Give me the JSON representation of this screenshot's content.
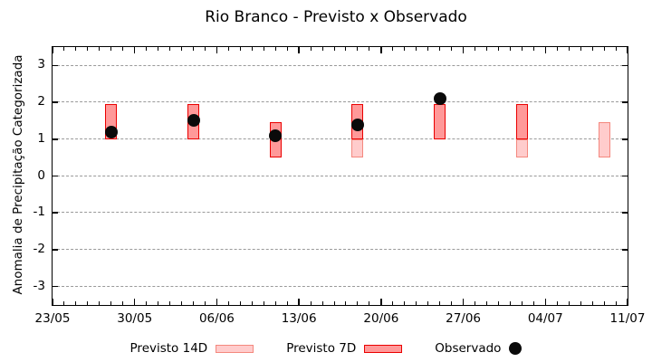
{
  "title": "Rio Branco - Previsto x Observado",
  "y_axis_label": "Anomalia de Precipitação Categorizada",
  "legend": {
    "previsto_14d_label": "Previsto 14D",
    "previsto_7d_label": "Previsto 7D",
    "observado_label": "Observado"
  },
  "chart_data": {
    "type": "bar",
    "title": "Rio Branco - Previsto x Observado",
    "xlabel": "",
    "ylabel": "Anomalia de Precipitação Categorizada",
    "ylim": [
      -3.5,
      3.5
    ],
    "y_ticks": [
      3,
      2,
      1,
      0,
      -1,
      -2,
      -3
    ],
    "grid": true,
    "legend_position": "bottom",
    "x_total_days": 49,
    "x_ticks": [
      {
        "label": "23/05",
        "day": 0
      },
      {
        "label": "30/05",
        "day": 7
      },
      {
        "label": "06/06",
        "day": 14
      },
      {
        "label": "13/06",
        "day": 21
      },
      {
        "label": "20/06",
        "day": 28
      },
      {
        "label": "27/06",
        "day": 35
      },
      {
        "label": "04/07",
        "day": 42
      },
      {
        "label": "11/07",
        "day": 49
      }
    ],
    "series_names": [
      "Previsto 14D",
      "Previsto 7D",
      "Observado"
    ],
    "bars": [
      {
        "date": "28/05",
        "day": 5,
        "previsto_14d": null,
        "previsto_7d": [
          1.0,
          1.95
        ],
        "observado": 1.2
      },
      {
        "date": "04/06",
        "day": 12,
        "previsto_14d": null,
        "previsto_7d": [
          1.0,
          1.95
        ],
        "observado": 1.5
      },
      {
        "date": "11/06",
        "day": 19,
        "previsto_14d": null,
        "previsto_7d": [
          0.5,
          1.45
        ],
        "observado": 1.1
      },
      {
        "date": "18/06",
        "day": 26,
        "previsto_14d": [
          0.5,
          1.0
        ],
        "previsto_7d": [
          1.0,
          1.95
        ],
        "observado": 1.4
      },
      {
        "date": "25/06",
        "day": 33,
        "previsto_14d": null,
        "previsto_7d": [
          1.0,
          1.95
        ],
        "observado": 2.1
      },
      {
        "date": "02/07",
        "day": 40,
        "previsto_14d": [
          0.5,
          1.0
        ],
        "previsto_7d": [
          1.0,
          1.95
        ],
        "observado": null
      },
      {
        "date": "09/07",
        "day": 47,
        "previsto_14d": [
          0.5,
          1.45
        ],
        "previsto_7d": null,
        "observado": null
      }
    ],
    "colors": {
      "previsto_14d_fill": "#ffcccc",
      "previsto_14d_border": "#f4887e",
      "previsto_7d_fill": "#ff9999",
      "previsto_7d_border": "#ea0000",
      "observado": "#0a0a0a",
      "grid": "#9a9a9a",
      "axis": "#000000"
    }
  }
}
